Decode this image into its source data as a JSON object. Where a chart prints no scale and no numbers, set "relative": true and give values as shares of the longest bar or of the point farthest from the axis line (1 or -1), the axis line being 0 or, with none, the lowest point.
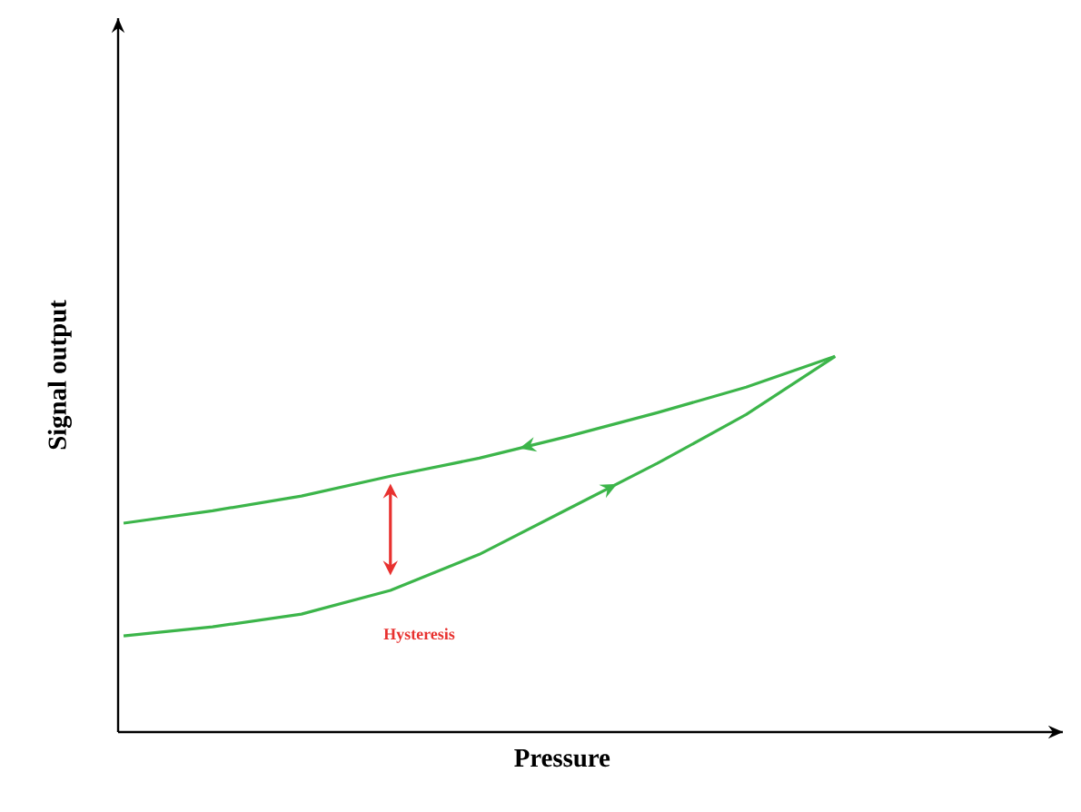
{
  "chart_data": {
    "type": "line",
    "relative": true,
    "xlabel": "Pressure",
    "ylabel": "Signal output",
    "categories": [
      null,
      null,
      null,
      null,
      null,
      null,
      null,
      null,
      null
    ],
    "series": [
      {
        "color": "#3cb54a",
        "values": [
          0.256,
          0.28,
          0.314,
          0.377,
          0.473,
          0.594,
          0.715,
          0.845,
          1.0
        ]
      },
      {
        "color": "#3cb54a",
        "values": [
          0.556,
          0.589,
          0.628,
          0.681,
          0.729,
          0.787,
          0.85,
          0.918,
          1.0
        ]
      }
    ],
    "annotations": [
      "Hysteresis"
    ]
  }
}
